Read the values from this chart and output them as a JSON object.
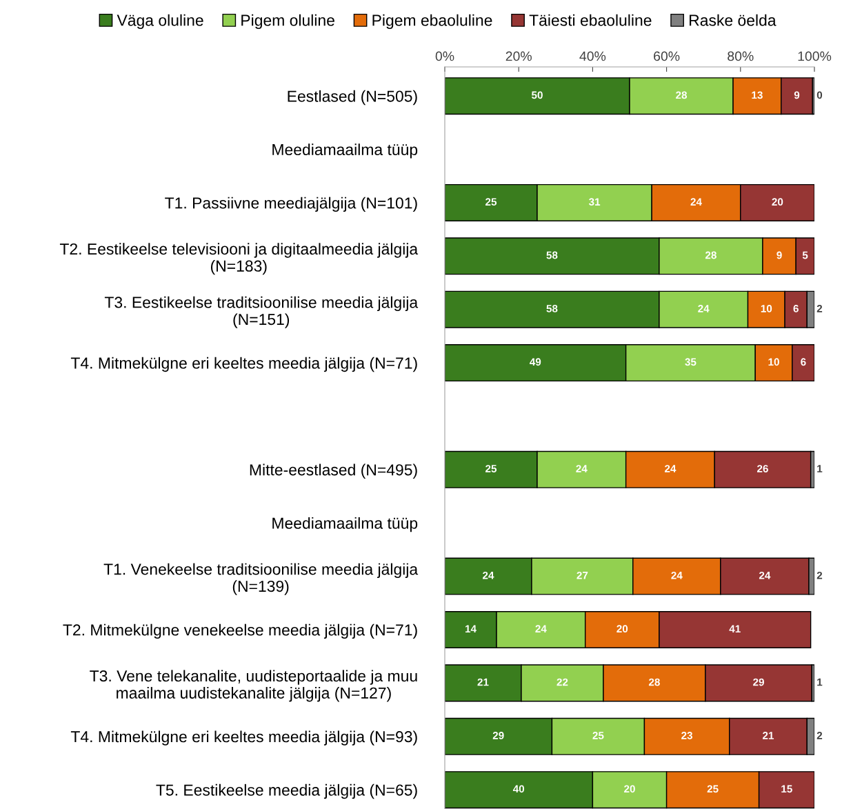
{
  "chart_data": {
    "type": "bar",
    "orientation": "horizontal",
    "stacked": true,
    "legend": "top",
    "xlim": [
      0,
      100
    ],
    "xticks": [
      {
        "value": 0,
        "label": "0%"
      },
      {
        "value": 20,
        "label": "20%"
      },
      {
        "value": 40,
        "label": "40%"
      },
      {
        "value": 60,
        "label": "60%"
      },
      {
        "value": 80,
        "label": "80%"
      },
      {
        "value": 100,
        "label": "100%"
      }
    ],
    "categories": [
      "Eestlased (N=505)",
      "Meediamaailma tüüp",
      "T1. Passiivne meediajälgija (N=101)",
      "T2. Eestikeelse televisiooni ja digitaalmeedia jälgija\n(N=183)",
      "T3. Eestikeelse traditsioonilise meedia jälgija\n(N=151)",
      "T4. Mitmekülgne eri keeltes meedia jälgija (N=71)",
      null,
      "Mitte-eestlased (N=495)",
      "Meediamaailma tüüp",
      "T1. Venekeelse traditsioonilise meedia jälgija\n(N=139)",
      "T2. Mitmekülgne venekeelse meedia jälgija (N=71)",
      "T3. Vene telekanalite, uudisteportaalide ja muu\nmaailma uudistekanalite jälgija (N=127)",
      "T4. Mitmekülgne eri keeltes meedia jälgija (N=93)",
      "T5. Eestikeelse meedia jälgija (N=65)"
    ],
    "series": [
      {
        "name": "Väga oluline",
        "color": "#3a7d1e",
        "values": [
          50,
          null,
          25,
          58,
          58,
          49,
          null,
          25,
          null,
          23.5,
          14,
          20.7,
          29,
          40
        ],
        "value_labels": [
          "50",
          null,
          "25",
          "58",
          "58",
          "49",
          null,
          "25",
          null,
          "24",
          "14",
          "21",
          "29",
          "40"
        ]
      },
      {
        "name": "Pigem oluline",
        "color": "#92d050",
        "values": [
          28,
          null,
          31,
          28,
          24,
          35,
          null,
          24,
          null,
          27.4,
          24,
          22.2,
          25,
          20
        ],
        "value_labels": [
          "28",
          null,
          "31",
          "28",
          "24",
          "35",
          null,
          "24",
          null,
          "27",
          "24",
          "22",
          "25",
          "20"
        ]
      },
      {
        "name": "Pigem ebaoluline",
        "color": "#e36c0a",
        "values": [
          13,
          null,
          24,
          9,
          10,
          10,
          null,
          24,
          null,
          23.7,
          20,
          27.6,
          23,
          25
        ],
        "value_labels": [
          "13",
          null,
          "24",
          "9",
          "10",
          "10",
          null,
          "24",
          null,
          "24",
          "20",
          "28",
          "23",
          "25"
        ]
      },
      {
        "name": "Täiesti ebaoluline",
        "color": "#963634",
        "values": [
          8.5,
          null,
          20,
          5,
          6,
          6,
          null,
          26,
          null,
          23.9,
          41,
          28.8,
          21,
          15
        ],
        "value_labels": [
          "9",
          null,
          "20",
          "5",
          "6",
          "6",
          null,
          "26",
          null,
          "24",
          "41",
          "29",
          "21",
          "15"
        ]
      },
      {
        "name": "Raske öelda",
        "color": "#808080",
        "values": [
          0.5,
          null,
          null,
          null,
          2,
          null,
          null,
          1,
          null,
          1.5,
          null,
          0.7,
          2,
          null
        ],
        "value_labels": [
          "0",
          null,
          null,
          null,
          "2",
          null,
          null,
          "1",
          null,
          "2",
          null,
          "1",
          "2",
          null
        ]
      }
    ]
  }
}
